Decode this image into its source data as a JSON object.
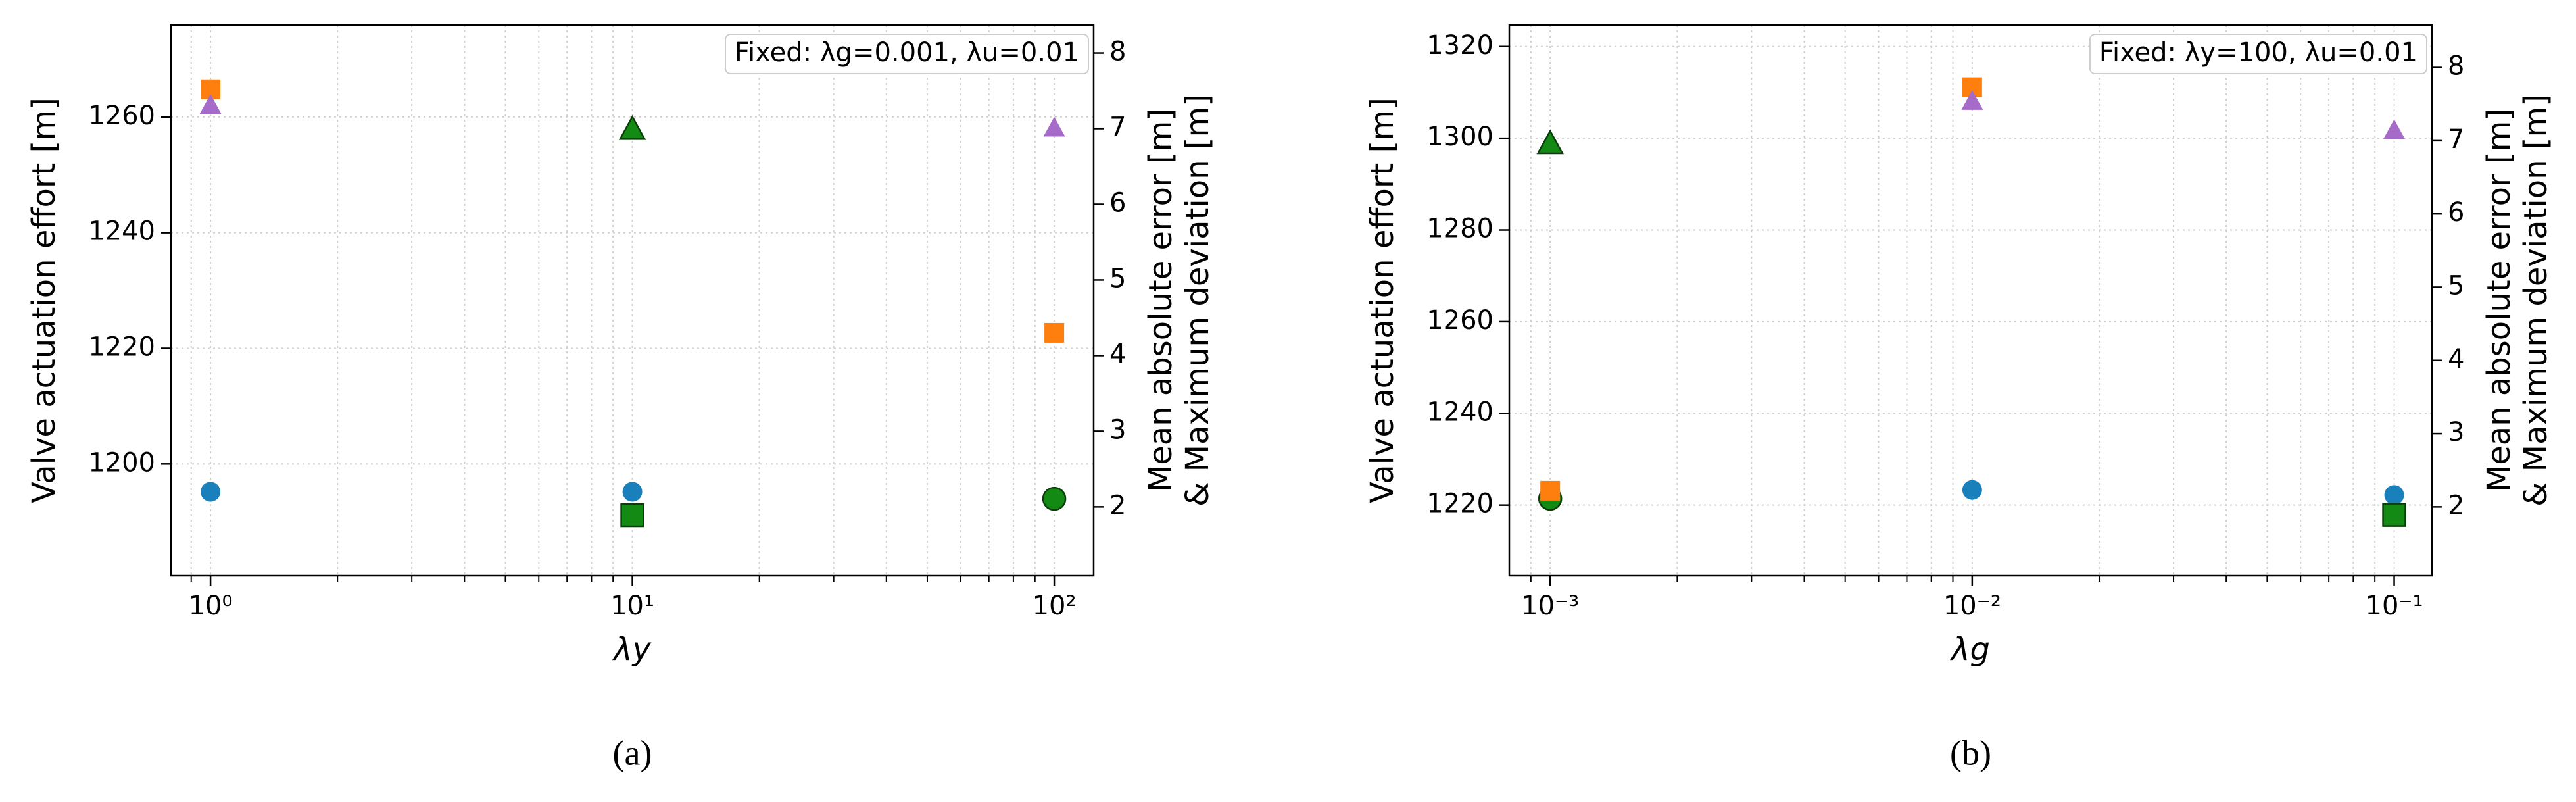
{
  "chart_data": [
    {
      "type": "scatter",
      "caption": "(a)",
      "annotation": "Fixed: λg=0.001, λu=0.01",
      "xlabel": "λy",
      "ylabel": "Valve actuation effort [m]",
      "y2label": [
        "Mean absolute error [m]",
        "& Maximum deviation [m]"
      ],
      "xscale": "log",
      "grid": true,
      "x": [
        1,
        10,
        100
      ],
      "xlim": [
        0.806,
        124
      ],
      "xticks": [
        {
          "value": 1,
          "label": "10⁰"
        },
        {
          "value": 10,
          "label": "10¹"
        },
        {
          "value": 100,
          "label": "10²"
        }
      ],
      "xminorticks": [
        0.9,
        2,
        3,
        4,
        5,
        6,
        7,
        8,
        9,
        20,
        30,
        40,
        50,
        60,
        70,
        80,
        90
      ],
      "ylim": [
        1180.7,
        1275.9
      ],
      "yticks": [
        1200,
        1220,
        1240,
        1260
      ],
      "y2lim": [
        1.09,
        8.37
      ],
      "y2ticks": [
        2,
        3,
        4,
        5,
        6,
        7,
        8
      ],
      "series": [
        {
          "marker": "circle",
          "axis": "y",
          "values": [
            1195.2,
            1195.2,
            1194.0
          ],
          "colors": [
            "#1a80bb",
            "#1a80bb",
            "#138a13"
          ]
        },
        {
          "marker": "square",
          "axis": "y2",
          "values": [
            7.52,
            1.89,
            4.3
          ],
          "colors": [
            "#ff7f0e",
            "#138a13",
            "#ff7f0e"
          ]
        },
        {
          "marker": "triangle",
          "axis": "y2",
          "values": [
            7.3,
            6.98,
            7.0
          ],
          "colors": [
            "#a66bc8",
            "#138a13",
            "#a66bc8"
          ]
        }
      ]
    },
    {
      "type": "scatter",
      "caption": "(b)",
      "annotation": "Fixed: λy=100, λu=0.01",
      "xlabel": "λg",
      "ylabel": "Valve actuation effort [m]",
      "y2label": [
        "Mean absolute error [m]",
        "& Maximum deviation [m]"
      ],
      "xscale": "log",
      "grid": true,
      "x": [
        0.001,
        0.01,
        0.1
      ],
      "xlim": [
        0.0008,
        0.1229
      ],
      "xticks": [
        {
          "value": 0.001,
          "label": "10⁻³"
        },
        {
          "value": 0.01,
          "label": "10⁻²"
        },
        {
          "value": 0.1,
          "label": "10⁻¹"
        }
      ],
      "xminorticks": [
        0.0009,
        0.002,
        0.003,
        0.004,
        0.005,
        0.006,
        0.007,
        0.008,
        0.009,
        0.02,
        0.03,
        0.04,
        0.05,
        0.06,
        0.07,
        0.08,
        0.09
      ],
      "ylim": [
        1204.6,
        1324.7
      ],
      "yticks": [
        1220,
        1240,
        1260,
        1280,
        1300,
        1320
      ],
      "y2lim": [
        1.06,
        8.58
      ],
      "y2ticks": [
        2,
        3,
        4,
        5,
        6,
        7,
        8
      ],
      "series": [
        {
          "marker": "circle",
          "axis": "y",
          "values": [
            1221.4,
            1223.3,
            1222.2
          ],
          "colors": [
            "#138a13",
            "#1a80bb",
            "#1a80bb"
          ]
        },
        {
          "marker": "square",
          "axis": "y2",
          "values": [
            2.22,
            7.73,
            1.89
          ],
          "colors": [
            "#ff7f0e",
            "#ff7f0e",
            "#138a13"
          ]
        },
        {
          "marker": "triangle",
          "axis": "y2",
          "values": [
            6.95,
            7.53,
            7.13
          ],
          "colors": [
            "#138a13",
            "#a66bc8",
            "#a66bc8"
          ]
        }
      ]
    }
  ]
}
